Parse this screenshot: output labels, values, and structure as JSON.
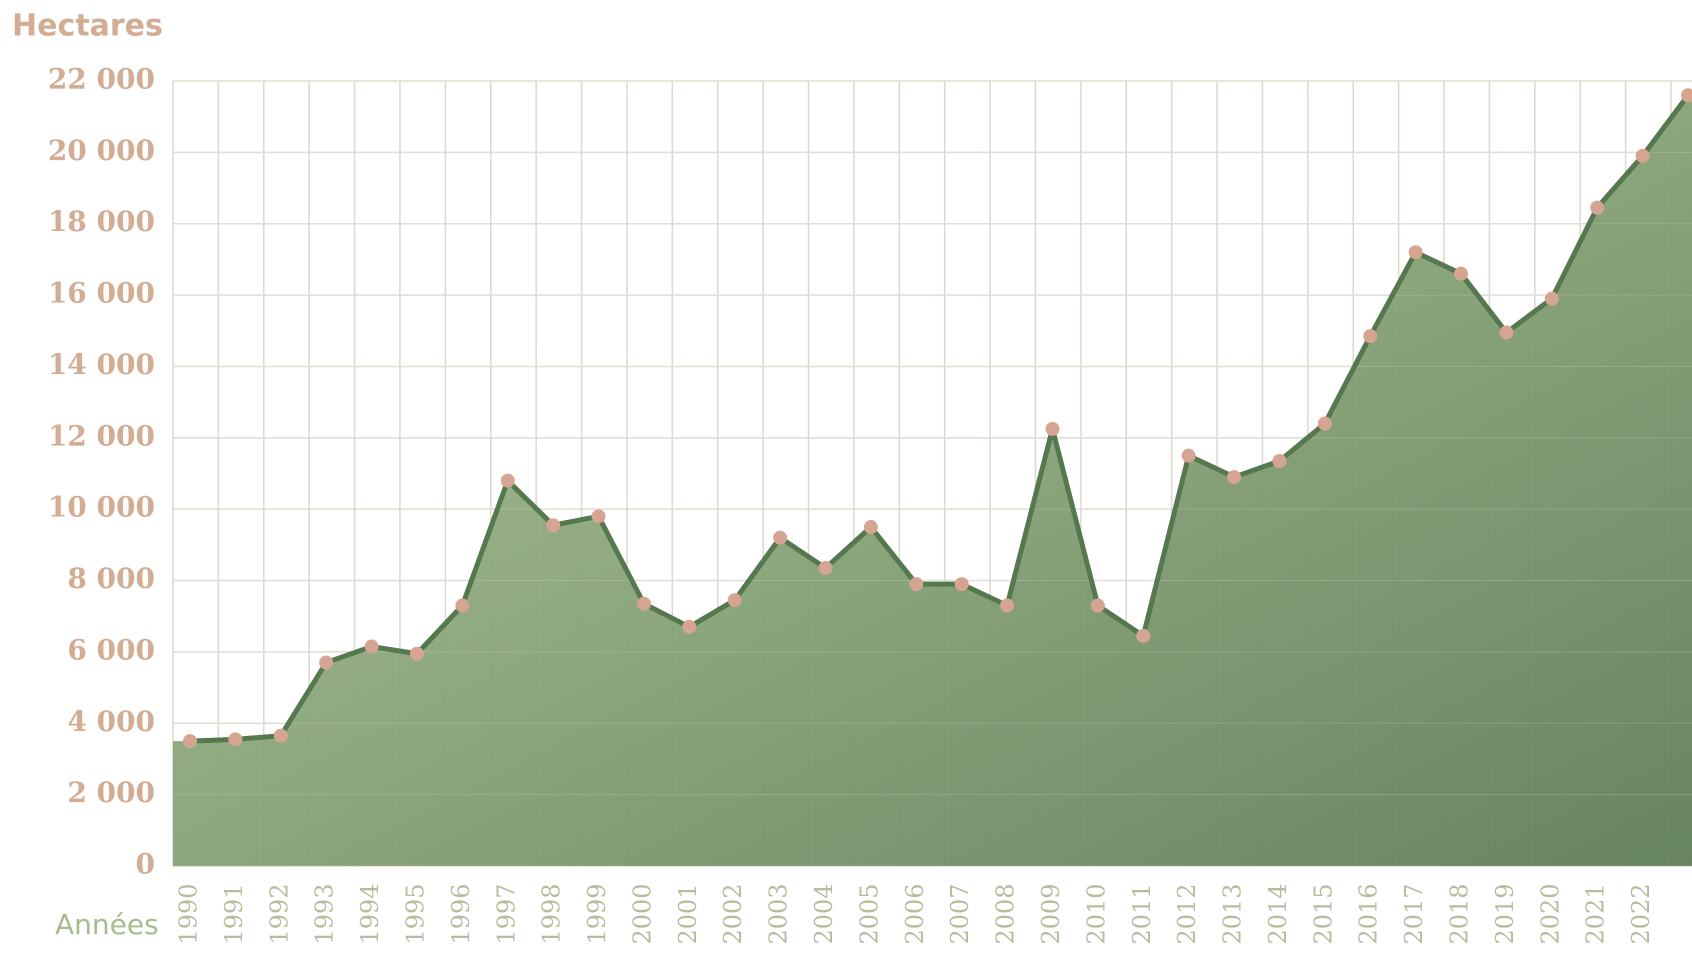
{
  "chart_data": {
    "type": "area",
    "y_label": "Hectares",
    "x_label": "Années",
    "categories": [
      "1990",
      "1991",
      "1992",
      "1993",
      "1994",
      "1995",
      "1996",
      "1997",
      "1998",
      "1999",
      "2000",
      "2001",
      "2002",
      "2003",
      "2004",
      "2005",
      "2006",
      "2007",
      "2008",
      "2009",
      "2010",
      "2011",
      "2012",
      "2013",
      "2014",
      "2015",
      "2016",
      "2017",
      "2018",
      "2019",
      "2020",
      "2021",
      "2022",
      null
    ],
    "values": [
      3500,
      3550,
      3650,
      5700,
      6150,
      5950,
      7300,
      10800,
      9550,
      9800,
      7350,
      6700,
      7450,
      9200,
      8350,
      9500,
      7900,
      7900,
      7300,
      12250,
      7300,
      6450,
      11500,
      10900,
      11350,
      12400,
      14850,
      17200,
      16600,
      14950,
      15900,
      18450,
      19900,
      21600
    ],
    "color": "#55784f",
    "marker_color": "#d6a591",
    "ylim": [
      0,
      22000
    ],
    "yticks": [
      0,
      {
        "value": 2000,
        "label": "2 000"
      },
      {
        "value": 4000,
        "label": "4 000"
      },
      {
        "value": 6000,
        "label": "6 000"
      },
      {
        "value": 8000,
        "label": "8 000"
      },
      {
        "value": 10000,
        "label": "10 000"
      },
      {
        "value": 12000,
        "label": "12 000"
      },
      {
        "value": 14000,
        "label": "14 000"
      },
      {
        "value": 16000,
        "label": "16 000"
      },
      {
        "value": 18000,
        "label": "18 000"
      },
      {
        "value": 20000,
        "label": "20 000"
      },
      {
        "value": 22000,
        "label": "22 000"
      }
    ],
    "grid": true
  }
}
